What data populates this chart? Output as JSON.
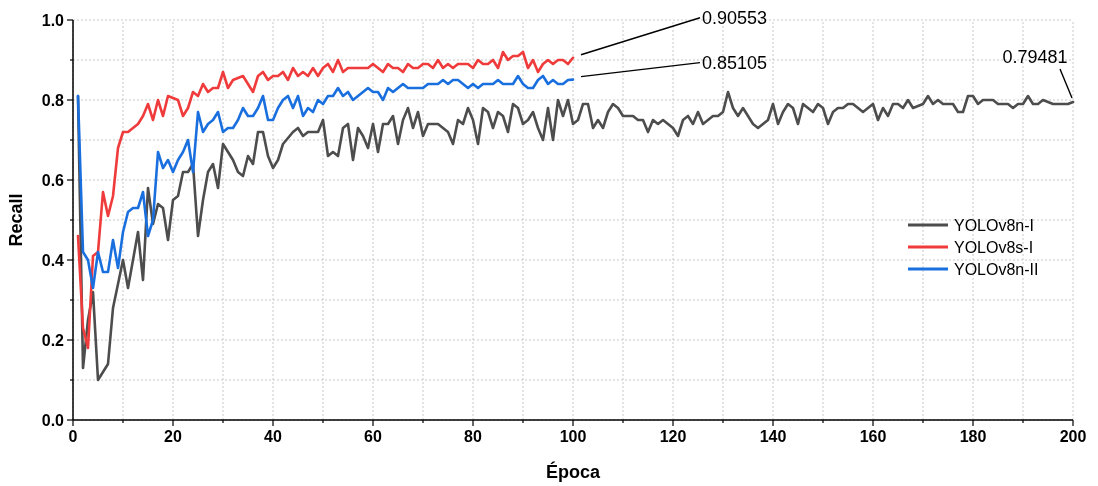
{
  "chart_data": {
    "type": "line",
    "xlabel": "Época",
    "ylabel": "Recall",
    "xlim": [
      0,
      200
    ],
    "ylim": [
      0,
      1.0
    ],
    "xticks": [
      0,
      {
        "value": 10,
        "label": null
      },
      20,
      {
        "value": 30,
        "label": null
      },
      40,
      {
        "value": 50,
        "label": null
      },
      60,
      {
        "value": 70,
        "label": null
      },
      80,
      {
        "value": 90,
        "label": null
      },
      100,
      {
        "value": 110,
        "label": null
      },
      120,
      {
        "value": 130,
        "label": null
      },
      140,
      {
        "value": 150,
        "label": null
      },
      160,
      {
        "value": 170,
        "label": null
      },
      180,
      {
        "value": 190,
        "label": null
      },
      200
    ],
    "yticks": [
      {
        "value": 0,
        "label": "0.0"
      },
      {
        "value": 0.1,
        "label": null
      },
      0.2,
      {
        "value": 0.3,
        "label": null
      },
      0.4,
      {
        "value": 0.5,
        "label": null
      },
      0.6,
      {
        "value": 0.7,
        "label": null
      },
      0.8,
      {
        "value": 0.9,
        "label": null
      },
      {
        "value": 1.0,
        "label": "1.0"
      }
    ],
    "grid": true,
    "legend": "right",
    "line_style": "solid",
    "marker": "none",
    "annotations": [
      "0.90553",
      "0.85105",
      "0.79481"
    ],
    "series": [
      {
        "name": "YOLOv8n-I",
        "color": "#4d4d4d",
        "x": [
          1,
          2,
          3,
          4,
          5,
          6,
          7,
          8,
          10,
          11,
          13,
          14,
          15,
          16,
          17,
          18,
          19,
          20,
          21,
          22,
          23,
          24,
          25,
          26,
          27,
          28,
          29,
          30,
          32,
          33,
          34,
          35,
          36,
          37,
          38,
          39,
          40,
          41,
          42,
          44,
          45,
          46,
          47,
          49,
          50,
          51,
          52,
          53,
          54,
          55,
          56,
          57,
          58,
          59,
          60,
          61,
          62,
          63,
          64,
          65,
          66,
          67,
          68,
          69,
          70,
          71,
          73,
          75,
          76,
          77,
          78,
          79,
          80,
          81,
          82,
          83,
          84,
          85,
          86,
          87,
          88,
          89,
          90,
          91,
          92,
          93,
          94,
          95,
          96,
          97,
          98,
          99,
          100,
          101,
          102,
          103,
          104,
          105,
          106,
          107,
          108,
          109,
          110,
          112,
          113,
          114,
          115,
          116,
          117,
          118,
          119,
          120,
          121,
          122,
          123,
          124,
          125,
          126,
          127,
          128,
          129,
          130,
          131,
          132,
          133,
          134,
          135,
          136,
          137,
          138,
          139,
          140,
          141,
          142,
          143,
          144,
          145,
          146,
          147,
          148,
          149,
          150,
          151,
          152,
          153,
          154,
          155,
          156,
          158,
          159,
          160,
          161,
          162,
          163,
          164,
          165,
          166,
          167,
          168,
          170,
          171,
          172,
          173,
          174,
          176,
          177,
          178,
          179,
          180,
          181,
          182,
          183,
          184,
          185,
          186,
          187,
          188,
          189,
          190,
          191,
          192,
          193,
          194,
          196,
          198,
          199,
          200
        ],
        "values": [
          0.81,
          0.13,
          0.25,
          0.32,
          0.1,
          0.12,
          0.14,
          0.28,
          0.4,
          0.33,
          0.47,
          0.35,
          0.58,
          0.49,
          0.54,
          0.53,
          0.45,
          0.55,
          0.56,
          0.62,
          0.62,
          0.64,
          0.46,
          0.55,
          0.62,
          0.64,
          0.58,
          0.69,
          0.65,
          0.62,
          0.61,
          0.66,
          0.64,
          0.72,
          0.72,
          0.66,
          0.63,
          0.65,
          0.69,
          0.72,
          0.73,
          0.71,
          0.72,
          0.72,
          0.75,
          0.66,
          0.67,
          0.66,
          0.73,
          0.74,
          0.65,
          0.73,
          0.71,
          0.68,
          0.74,
          0.67,
          0.74,
          0.74,
          0.76,
          0.69,
          0.75,
          0.78,
          0.73,
          0.77,
          0.71,
          0.74,
          0.74,
          0.72,
          0.69,
          0.75,
          0.74,
          0.78,
          0.75,
          0.69,
          0.78,
          0.77,
          0.73,
          0.77,
          0.76,
          0.72,
          0.79,
          0.78,
          0.74,
          0.75,
          0.77,
          0.73,
          0.7,
          0.78,
          0.7,
          0.8,
          0.76,
          0.8,
          0.74,
          0.75,
          0.79,
          0.79,
          0.73,
          0.75,
          0.73,
          0.77,
          0.79,
          0.78,
          0.76,
          0.76,
          0.75,
          0.75,
          0.72,
          0.75,
          0.74,
          0.75,
          0.74,
          0.73,
          0.71,
          0.75,
          0.76,
          0.74,
          0.77,
          0.74,
          0.75,
          0.76,
          0.76,
          0.77,
          0.82,
          0.78,
          0.76,
          0.78,
          0.76,
          0.74,
          0.73,
          0.74,
          0.75,
          0.79,
          0.74,
          0.77,
          0.79,
          0.78,
          0.74,
          0.79,
          0.78,
          0.77,
          0.79,
          0.78,
          0.74,
          0.77,
          0.78,
          0.78,
          0.79,
          0.79,
          0.77,
          0.78,
          0.79,
          0.75,
          0.78,
          0.76,
          0.79,
          0.79,
          0.78,
          0.8,
          0.78,
          0.79,
          0.81,
          0.79,
          0.8,
          0.79,
          0.79,
          0.77,
          0.77,
          0.81,
          0.81,
          0.79,
          0.8,
          0.8,
          0.8,
          0.79,
          0.79,
          0.79,
          0.78,
          0.79,
          0.79,
          0.81,
          0.79,
          0.79,
          0.8,
          0.79,
          0.79,
          0.79,
          0.79481
        ]
      },
      {
        "name": "YOLOv8s-I",
        "color": "#ef3b3b",
        "x": [
          1,
          2,
          3,
          4,
          5,
          6,
          7,
          8,
          9,
          10,
          11,
          13,
          14,
          15,
          16,
          17,
          18,
          19,
          21,
          22,
          23,
          24,
          25,
          26,
          27,
          28,
          29,
          30,
          31,
          32,
          34,
          35,
          36,
          37,
          38,
          39,
          40,
          41,
          42,
          43,
          44,
          45,
          46,
          47,
          48,
          49,
          50,
          51,
          52,
          53,
          54,
          55,
          57,
          59,
          60,
          61,
          62,
          63,
          64,
          65,
          66,
          67,
          68,
          69,
          70,
          71,
          72,
          73,
          74,
          75,
          76,
          77,
          78,
          79,
          80,
          81,
          82,
          83,
          84,
          85,
          86,
          87,
          88,
          89,
          90,
          91,
          92,
          93,
          94,
          95,
          96,
          97,
          98,
          99,
          100
        ],
        "values": [
          0.46,
          0.23,
          0.18,
          0.41,
          0.42,
          0.57,
          0.51,
          0.56,
          0.68,
          0.72,
          0.72,
          0.74,
          0.76,
          0.79,
          0.75,
          0.8,
          0.76,
          0.81,
          0.8,
          0.76,
          0.78,
          0.82,
          0.81,
          0.84,
          0.82,
          0.83,
          0.83,
          0.87,
          0.83,
          0.85,
          0.86,
          0.84,
          0.82,
          0.86,
          0.87,
          0.85,
          0.86,
          0.86,
          0.87,
          0.85,
          0.88,
          0.86,
          0.87,
          0.86,
          0.88,
          0.86,
          0.88,
          0.89,
          0.87,
          0.9,
          0.87,
          0.88,
          0.88,
          0.88,
          0.89,
          0.88,
          0.87,
          0.89,
          0.88,
          0.88,
          0.87,
          0.89,
          0.88,
          0.88,
          0.89,
          0.89,
          0.88,
          0.9,
          0.88,
          0.89,
          0.88,
          0.89,
          0.89,
          0.89,
          0.88,
          0.9,
          0.89,
          0.89,
          0.9,
          0.88,
          0.92,
          0.9,
          0.91,
          0.91,
          0.92,
          0.88,
          0.9,
          0.87,
          0.89,
          0.9,
          0.89,
          0.9,
          0.9,
          0.89,
          0.90553
        ]
      },
      {
        "name": "YOLOv8n-II",
        "color": "#1a6fdf",
        "x": [
          1,
          2,
          3,
          4,
          5,
          6,
          7,
          8,
          9,
          10,
          11,
          12,
          13,
          14,
          15,
          16,
          17,
          18,
          19,
          20,
          21,
          22,
          23,
          24,
          25,
          26,
          27,
          28,
          29,
          30,
          31,
          32,
          33,
          34,
          35,
          36,
          37,
          38,
          39,
          40,
          41,
          42,
          43,
          44,
          45,
          46,
          47,
          48,
          49,
          50,
          51,
          52,
          53,
          54,
          55,
          56,
          57,
          58,
          59,
          60,
          61,
          62,
          63,
          64,
          65,
          66,
          67,
          68,
          69,
          70,
          71,
          72,
          73,
          74,
          75,
          76,
          77,
          78,
          79,
          80,
          81,
          82,
          83,
          84,
          85,
          86,
          87,
          88,
          89,
          90,
          91,
          92,
          93,
          94,
          95,
          96,
          97,
          98,
          99,
          100
        ],
        "values": [
          0.81,
          0.42,
          0.4,
          0.33,
          0.42,
          0.37,
          0.37,
          0.45,
          0.38,
          0.47,
          0.52,
          0.53,
          0.53,
          0.57,
          0.46,
          0.5,
          0.67,
          0.63,
          0.65,
          0.62,
          0.65,
          0.67,
          0.7,
          0.62,
          0.77,
          0.72,
          0.74,
          0.75,
          0.77,
          0.72,
          0.73,
          0.73,
          0.75,
          0.78,
          0.76,
          0.76,
          0.78,
          0.81,
          0.75,
          0.75,
          0.78,
          0.8,
          0.81,
          0.78,
          0.81,
          0.76,
          0.78,
          0.77,
          0.8,
          0.79,
          0.81,
          0.81,
          0.83,
          0.81,
          0.82,
          0.8,
          0.81,
          0.82,
          0.83,
          0.82,
          0.82,
          0.8,
          0.83,
          0.82,
          0.83,
          0.84,
          0.83,
          0.83,
          0.83,
          0.83,
          0.84,
          0.84,
          0.84,
          0.85,
          0.84,
          0.85,
          0.85,
          0.84,
          0.83,
          0.84,
          0.83,
          0.84,
          0.84,
          0.84,
          0.85,
          0.84,
          0.84,
          0.84,
          0.86,
          0.84,
          0.83,
          0.83,
          0.85,
          0.86,
          0.84,
          0.85,
          0.84,
          0.84,
          0.85,
          0.85105
        ]
      }
    ]
  }
}
